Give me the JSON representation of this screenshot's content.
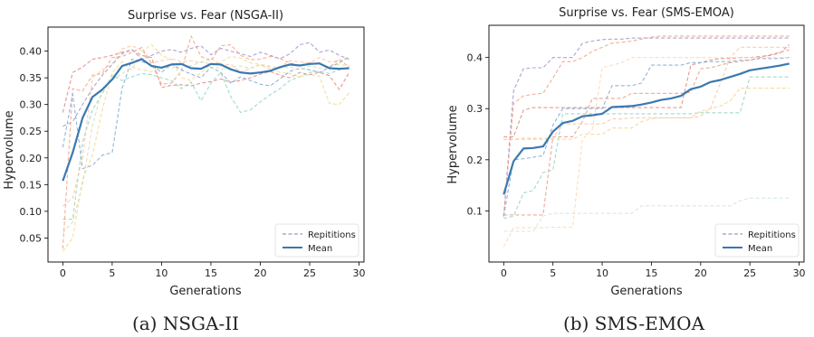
{
  "chart_data": [
    {
      "type": "line",
      "title": "Surprise vs. Fear (NSGA-II)",
      "caption": "(a) NSGA-II",
      "xlabel": "Generations",
      "ylabel": "Hypervolume",
      "xlim": [
        -1.5,
        30.5
      ],
      "ylim": [
        0.005,
        0.445
      ],
      "xticks": [
        0,
        5,
        10,
        15,
        20,
        25,
        30
      ],
      "yticks": [
        0.05,
        0.1,
        0.15,
        0.2,
        0.25,
        0.3,
        0.35,
        0.4
      ],
      "ytick_labels": [
        "0.05",
        "0.10",
        "0.15",
        "0.20",
        "0.25",
        "0.30",
        "0.35",
        "0.40"
      ],
      "legend": {
        "position": "bottom-right",
        "entries": [
          "Repititions",
          "Mean"
        ]
      },
      "x": [
        0,
        1,
        2,
        3,
        4,
        5,
        6,
        7,
        8,
        9,
        10,
        11,
        12,
        13,
        14,
        15,
        16,
        17,
        18,
        19,
        20,
        21,
        22,
        23,
        24,
        25,
        26,
        27,
        28,
        29
      ],
      "series": [
        {
          "name": "Mean",
          "color": "#3a78b0",
          "style": "solid",
          "width": 2.2,
          "values": [
            0.157,
            0.21,
            0.275,
            0.314,
            0.328,
            0.347,
            0.372,
            0.378,
            0.385,
            0.372,
            0.369,
            0.375,
            0.376,
            0.368,
            0.367,
            0.376,
            0.375,
            0.366,
            0.36,
            0.358,
            0.36,
            0.363,
            0.37,
            0.375,
            0.373,
            0.376,
            0.377,
            0.368,
            0.367,
            0.368
          ]
        },
        {
          "name": "",
          "color": "#e0867f",
          "style": "dashed",
          "values": [
            0.285,
            0.36,
            0.37,
            0.385,
            0.388,
            0.392,
            0.398,
            0.402,
            0.392,
            0.388,
            0.332,
            0.336,
            0.337,
            0.335,
            0.34,
            0.343,
            0.348,
            0.342,
            0.345,
            0.35,
            0.357,
            0.362,
            0.355,
            0.35,
            0.36,
            0.356,
            0.36,
            0.354,
            0.328,
            0.36
          ]
        },
        {
          "name": "",
          "color": "#a094c6",
          "style": "dashed",
          "values": [
            0.259,
            0.268,
            0.3,
            0.33,
            0.355,
            0.375,
            0.395,
            0.403,
            0.385,
            0.392,
            0.4,
            0.403,
            0.398,
            0.405,
            0.41,
            0.393,
            0.405,
            0.4,
            0.395,
            0.39,
            0.398,
            0.392,
            0.386,
            0.395,
            0.412,
            0.416,
            0.398,
            0.402,
            0.392,
            0.385
          ]
        },
        {
          "name": "",
          "color": "#f4a082",
          "style": "dashed",
          "values": [
            0.03,
            0.33,
            0.325,
            0.355,
            0.358,
            0.388,
            0.39,
            0.398,
            0.407,
            0.376,
            0.338,
            0.34,
            0.362,
            0.428,
            0.39,
            0.382,
            0.41,
            0.412,
            0.392,
            0.384,
            0.385,
            0.39,
            0.386,
            0.378,
            0.372,
            0.378,
            0.376,
            0.37,
            0.385,
            0.37
          ]
        },
        {
          "name": "",
          "color": "#7ea8d2",
          "style": "dashed",
          "values": [
            0.22,
            0.32,
            0.18,
            0.186,
            0.205,
            0.21,
            0.33,
            0.385,
            0.38,
            0.375,
            0.36,
            0.376,
            0.365,
            0.357,
            0.35,
            0.37,
            0.36,
            0.34,
            0.352,
            0.345,
            0.338,
            0.335,
            0.348,
            0.362,
            0.368,
            0.365,
            0.36,
            0.37,
            0.378,
            0.39
          ]
        },
        {
          "name": "",
          "color": "#92d3c5",
          "style": "dashed",
          "values": [
            0.085,
            0.085,
            0.23,
            0.29,
            0.32,
            0.355,
            0.345,
            0.352,
            0.358,
            0.356,
            0.35,
            0.345,
            0.33,
            0.342,
            0.307,
            0.34,
            0.36,
            0.315,
            0.285,
            0.29,
            0.305,
            0.318,
            0.33,
            0.345,
            0.352,
            0.36,
            0.362,
            0.358,
            0.365,
            0.368
          ]
        },
        {
          "name": "",
          "color": "#f2d98b",
          "style": "dashed",
          "values": [
            0.025,
            0.05,
            0.16,
            0.205,
            0.29,
            0.36,
            0.38,
            0.365,
            0.4,
            0.412,
            0.392,
            0.384,
            0.35,
            0.345,
            0.36,
            0.375,
            0.38,
            0.39,
            0.387,
            0.378,
            0.375,
            0.37,
            0.36,
            0.358,
            0.352,
            0.356,
            0.353,
            0.302,
            0.3,
            0.322
          ]
        },
        {
          "name": "",
          "color": "#fbc4a1",
          "style": "dashed",
          "values": [
            0.11,
            0.125,
            0.2,
            0.35,
            0.365,
            0.376,
            0.404,
            0.41,
            0.402,
            0.378,
            0.382,
            0.386,
            0.38,
            0.382,
            0.378,
            0.388,
            0.372,
            0.376,
            0.36,
            0.368,
            0.374,
            0.366,
            0.37,
            0.382,
            0.38,
            0.378,
            0.388,
            0.38,
            0.382,
            0.386
          ]
        },
        {
          "name": "",
          "color": "#d6dfb0",
          "style": "dashed",
          "values": [
            0.06,
            0.08,
            0.15,
            0.26,
            0.33,
            0.345,
            0.358,
            0.37,
            0.365,
            0.362,
            0.37,
            0.368,
            0.375,
            0.372,
            0.38,
            0.376,
            0.366,
            0.37,
            0.372,
            0.368,
            0.375,
            0.372,
            0.368,
            0.37,
            0.365,
            0.372,
            0.368,
            0.372,
            0.375,
            0.372
          ]
        }
      ]
    },
    {
      "type": "line",
      "title": "Surprise vs. Fear (SMS-EMOA)",
      "caption": "(b) SMS-EMOA",
      "xlabel": "Generations",
      "ylabel": "Hypervolume",
      "xlim": [
        -1.5,
        30.5
      ],
      "ylim": [
        0.0,
        0.463
      ],
      "xticks": [
        0,
        5,
        10,
        15,
        20,
        25,
        30
      ],
      "yticks": [
        0.1,
        0.2,
        0.3,
        0.4
      ],
      "ytick_labels": [
        "0.1",
        "0.2",
        "0.3",
        "0.4"
      ],
      "legend": {
        "position": "bottom-right",
        "entries": [
          "Repititions",
          "Mean"
        ]
      },
      "x": [
        0,
        1,
        2,
        3,
        4,
        5,
        6,
        7,
        8,
        9,
        10,
        11,
        12,
        13,
        14,
        15,
        16,
        17,
        18,
        19,
        20,
        21,
        22,
        23,
        24,
        25,
        26,
        27,
        28,
        29
      ],
      "series": [
        {
          "name": "Mean",
          "color": "#3a78b0",
          "style": "solid",
          "width": 2.2,
          "values": [
            0.132,
            0.197,
            0.222,
            0.223,
            0.226,
            0.255,
            0.272,
            0.276,
            0.285,
            0.287,
            0.29,
            0.303,
            0.304,
            0.305,
            0.308,
            0.312,
            0.317,
            0.32,
            0.325,
            0.338,
            0.343,
            0.352,
            0.356,
            0.362,
            0.368,
            0.375,
            0.378,
            0.381,
            0.384,
            0.388
          ]
        },
        {
          "name": "",
          "color": "#a094c6",
          "style": "dashed",
          "values": [
            0.09,
            0.335,
            0.378,
            0.38,
            0.38,
            0.4,
            0.4,
            0.4,
            0.428,
            0.432,
            0.435,
            0.436,
            0.436,
            0.438,
            0.438,
            0.438,
            0.438,
            0.438,
            0.438,
            0.438,
            0.438,
            0.438,
            0.438,
            0.438,
            0.438,
            0.438,
            0.438,
            0.438,
            0.438,
            0.438
          ]
        },
        {
          "name": "",
          "color": "#f4a082",
          "style": "dashed",
          "values": [
            0.088,
            0.31,
            0.325,
            0.328,
            0.33,
            0.36,
            0.392,
            0.392,
            0.4,
            0.412,
            0.42,
            0.428,
            0.43,
            0.432,
            0.436,
            0.44,
            0.442,
            0.442,
            0.442,
            0.442,
            0.442,
            0.442,
            0.442,
            0.442,
            0.442,
            0.442,
            0.442,
            0.442,
            0.442,
            0.442
          ]
        },
        {
          "name": "",
          "color": "#e0867f",
          "style": "dashed",
          "values": [
            0.245,
            0.245,
            0.297,
            0.302,
            0.302,
            0.302,
            0.302,
            0.302,
            0.302,
            0.302,
            0.302,
            0.302,
            0.302,
            0.302,
            0.302,
            0.302,
            0.302,
            0.302,
            0.302,
            0.385,
            0.39,
            0.395,
            0.398,
            0.398,
            0.4,
            0.4,
            0.402,
            0.404,
            0.408,
            0.425
          ]
        },
        {
          "name": "",
          "color": "#7ea8d2",
          "style": "dashed",
          "values": [
            0.09,
            0.2,
            0.202,
            0.205,
            0.208,
            0.268,
            0.3,
            0.3,
            0.3,
            0.3,
            0.3,
            0.345,
            0.345,
            0.345,
            0.35,
            0.385,
            0.385,
            0.385,
            0.385,
            0.39,
            0.39,
            0.392,
            0.392,
            0.392,
            0.395,
            0.395,
            0.398,
            0.398,
            0.398,
            0.4
          ]
        },
        {
          "name": "",
          "color": "#ea9a86",
          "style": "dashed",
          "values": [
            0.092,
            0.092,
            0.092,
            0.092,
            0.092,
            0.245,
            0.245,
            0.245,
            0.275,
            0.32,
            0.32,
            0.32,
            0.32,
            0.33,
            0.33,
            0.33,
            0.33,
            0.33,
            0.33,
            0.332,
            0.378,
            0.38,
            0.385,
            0.39,
            0.392,
            0.395,
            0.4,
            0.405,
            0.41,
            0.415
          ]
        },
        {
          "name": "",
          "color": "#92d3c5",
          "style": "dashed",
          "values": [
            0.085,
            0.09,
            0.135,
            0.14,
            0.175,
            0.18,
            0.29,
            0.29,
            0.29,
            0.29,
            0.29,
            0.29,
            0.29,
            0.29,
            0.29,
            0.29,
            0.29,
            0.29,
            0.29,
            0.29,
            0.292,
            0.292,
            0.292,
            0.292,
            0.292,
            0.362,
            0.362,
            0.362,
            0.362,
            0.362
          ]
        },
        {
          "name": "",
          "color": "#f6d38f",
          "style": "dashed",
          "values": [
            0.24,
            0.24,
            0.24,
            0.24,
            0.24,
            0.24,
            0.24,
            0.24,
            0.25,
            0.25,
            0.25,
            0.262,
            0.262,
            0.262,
            0.275,
            0.28,
            0.282,
            0.282,
            0.282,
            0.282,
            0.295,
            0.3,
            0.305,
            0.315,
            0.34,
            0.34,
            0.34,
            0.34,
            0.34,
            0.34
          ]
        },
        {
          "name": "",
          "color": "#fbc4a1",
          "style": "dashed",
          "values": [
            0.24,
            0.24,
            0.242,
            0.242,
            0.242,
            0.242,
            0.27,
            0.27,
            0.27,
            0.27,
            0.27,
            0.28,
            0.28,
            0.282,
            0.282,
            0.282,
            0.282,
            0.282,
            0.282,
            0.282,
            0.285,
            0.3,
            0.35,
            0.4,
            0.42,
            0.42,
            0.42,
            0.42,
            0.42,
            0.42
          ]
        },
        {
          "name": "",
          "color": "#ffd6b0",
          "style": "dashed",
          "values": [
            0.03,
            0.067,
            0.067,
            0.067,
            0.067,
            0.068,
            0.068,
            0.068,
            0.24,
            0.26,
            0.38,
            0.385,
            0.39,
            0.4,
            0.4,
            0.4,
            0.4,
            0.4,
            0.4,
            0.4,
            0.4,
            0.4,
            0.4,
            0.4,
            0.4,
            0.4,
            0.4,
            0.4,
            0.4,
            0.4
          ]
        },
        {
          "name": "",
          "color": "#cfe6d8",
          "style": "dashed",
          "values": [
            0.06,
            0.06,
            0.06,
            0.06,
            0.09,
            0.095,
            0.095,
            0.095,
            0.095,
            0.095,
            0.095,
            0.095,
            0.095,
            0.095,
            0.11,
            0.11,
            0.11,
            0.11,
            0.11,
            0.11,
            0.11,
            0.11,
            0.11,
            0.11,
            0.12,
            0.125,
            0.125,
            0.125,
            0.125,
            0.125
          ]
        }
      ]
    }
  ]
}
